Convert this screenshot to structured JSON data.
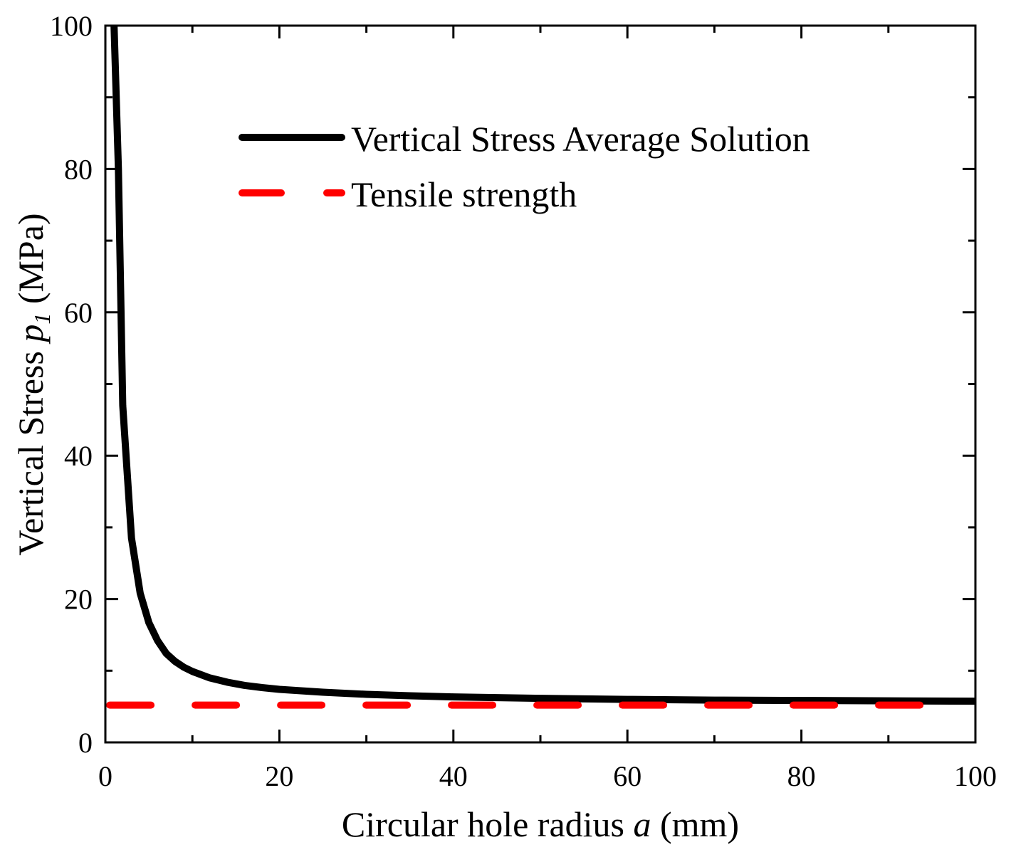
{
  "chart_data": {
    "type": "line",
    "xlabel": {
      "prefix": "Circular hole radius ",
      "var": "a",
      "suffix": " (mm)"
    },
    "ylabel": {
      "prefix": "Vertical Stress ",
      "var": "p",
      "sub": "1",
      "suffix": " (MPa)"
    },
    "xlim": [
      0,
      100
    ],
    "ylim": [
      0,
      100
    ],
    "xticks": [
      0,
      20,
      40,
      60,
      80,
      100
    ],
    "yticks": [
      0,
      20,
      40,
      60,
      80,
      100
    ],
    "grid": false,
    "legend_position": "top-right",
    "series": [
      {
        "name": "Vertical Stress Average Solution",
        "color": "#000000",
        "style": "solid",
        "x": [
          1.0,
          1.5,
          2.0,
          3.0,
          4.0,
          5.0,
          6.0,
          7.0,
          8.0,
          9.0,
          10.0,
          12.0,
          14.0,
          16.0,
          18.0,
          20.0,
          25.0,
          30.0,
          35.0,
          40.0,
          50.0,
          60.0,
          70.0,
          80.0,
          90.0,
          100.0
        ],
        "y": [
          100.0,
          80.0,
          47.0,
          28.5,
          20.8,
          16.7,
          14.2,
          12.4,
          11.3,
          10.5,
          9.9,
          9.0,
          8.4,
          7.95,
          7.65,
          7.4,
          7.0,
          6.7,
          6.5,
          6.35,
          6.15,
          6.0,
          5.9,
          5.85,
          5.8,
          5.75
        ]
      },
      {
        "name": "Tensile strength",
        "color": "#ff0000",
        "style": "dashed",
        "x": [
          0.5,
          96.0
        ],
        "y": [
          5.2,
          5.2
        ]
      }
    ]
  }
}
